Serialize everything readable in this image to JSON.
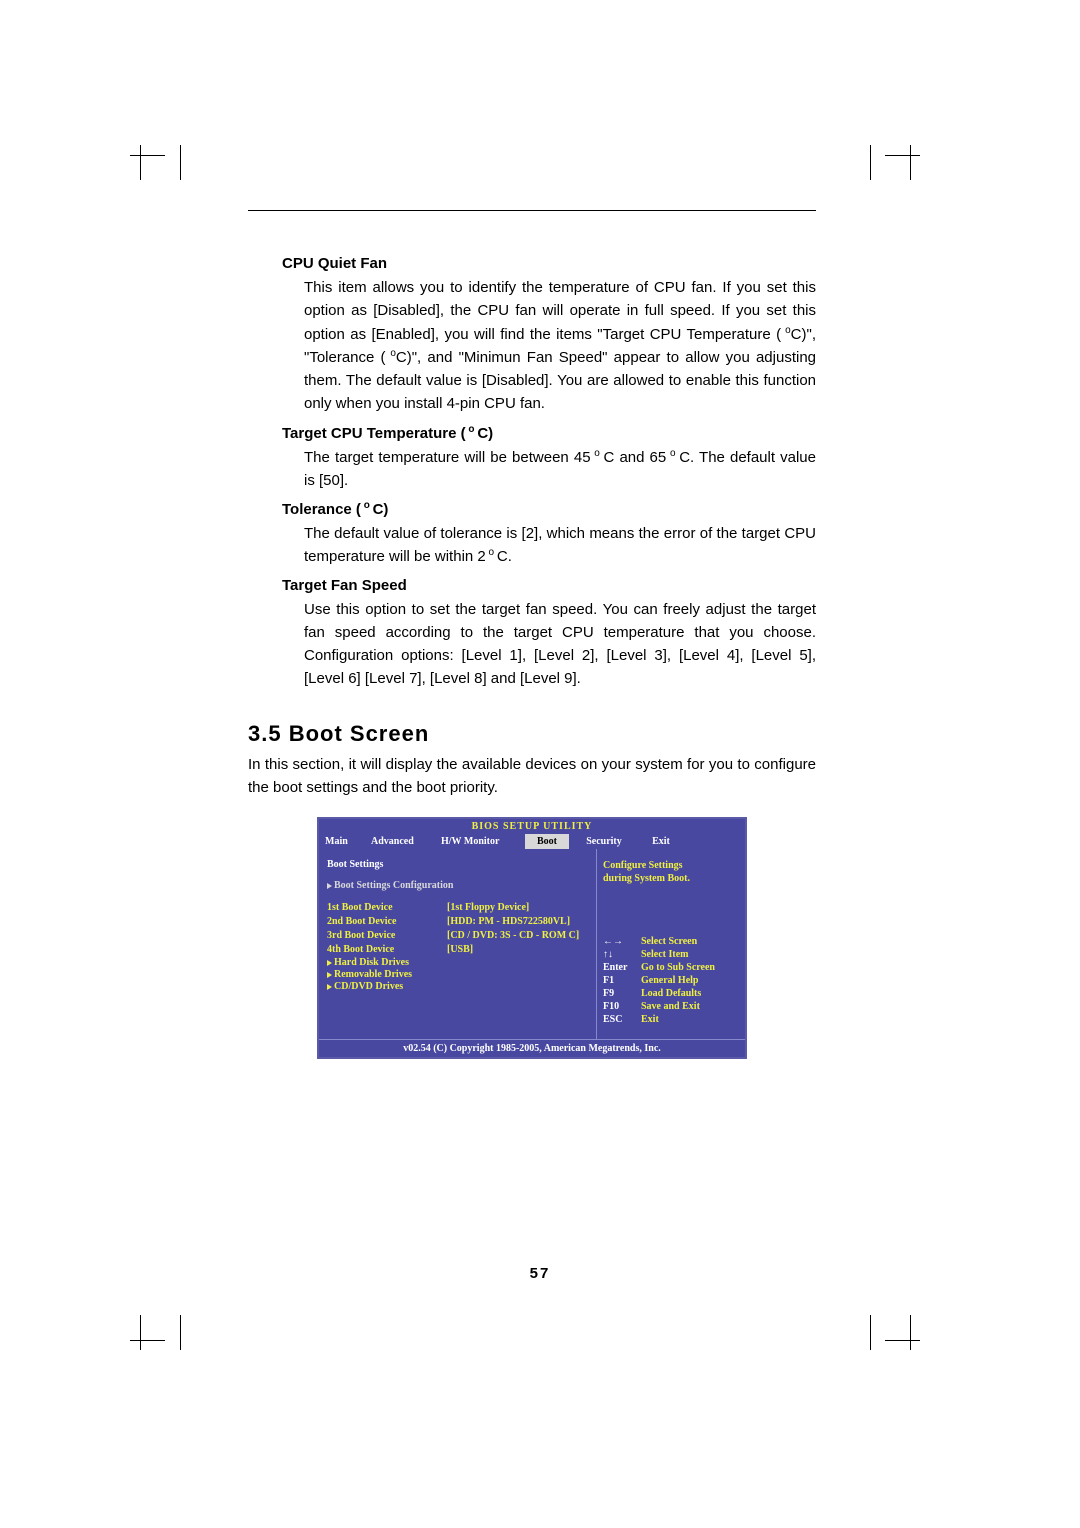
{
  "page_number": "57",
  "sections": {
    "cpu_quiet_fan": {
      "title": "CPU Quiet Fan",
      "body_a": "This item allows you to identify the temperature of CPU fan. If you set this option as [Disabled], the CPU fan will operate in full speed. If you set this option as [Enabled], you will find the items \"Target CPU Temperature",
      "body_b": "C)\", \"Tolerance (",
      "body_c": "C)\", and \"Minimun Fan Speed\" appear to allow you adjusting them. The default value is [Disabled]. You are allowed to enable this function only when you install 4-pin CPU fan."
    },
    "target_cpu_temp": {
      "title": "Target CPU Temperature (",
      "title_suffix": "C)",
      "body_a": "The target temperature will be between 45",
      "body_b": "C and 65",
      "body_c": "C. The default value is [50]."
    },
    "tolerance": {
      "title": "Tolerance (",
      "title_suffix": "C)",
      "body_a": "The default value of tolerance is [2], which means the error of the target CPU temperature will be within 2",
      "body_b": "C."
    },
    "target_fan_speed": {
      "title": "Target Fan Speed",
      "body": "Use this option to set the target fan speed. You can freely adjust the target fan speed according to the target CPU temperature that you choose. Configuration options: [Level 1], [Level 2], [Level 3], [Level 4], [Level 5], [Level 6] [Level 7], [Level 8] and [Level 9]."
    }
  },
  "boot_screen": {
    "heading": "3.5 Boot Screen",
    "intro": "In this section, it will display the available devices on your system for you to configure the boot settings and the boot priority."
  },
  "bios": {
    "title": "BIOS SETUP UTILITY",
    "tabs": {
      "main": "Main",
      "advanced": "Advanced",
      "hw": "H/W Monitor",
      "boot": "Boot",
      "security": "Security",
      "exit": "Exit"
    },
    "left": {
      "section": "Boot Settings",
      "config": "Boot Settings Configuration",
      "rows": [
        {
          "k": "1st Boot Device",
          "v": "[1st  Floppy Device]"
        },
        {
          "k": "2nd Boot Device",
          "v": "[HDD: PM - HDS722580VL]"
        },
        {
          "k": "3rd Boot Device",
          "v": "[CD / DVD: 3S - CD - ROM C]"
        },
        {
          "k": "4th Boot Device",
          "v": "[USB]"
        }
      ],
      "subs": [
        "Hard Disk Drives",
        "Removable Drives",
        "CD/DVD Drives"
      ]
    },
    "right": {
      "help1": "Configure Settings",
      "help2": "during System Boot.",
      "keys": [
        {
          "k": "←→",
          "d": "Select Screen"
        },
        {
          "k": "↑↓",
          "d": "Select Item"
        },
        {
          "k": "Enter",
          "d": "Go to Sub Screen"
        },
        {
          "k": "F1",
          "d": "General Help"
        },
        {
          "k": "F9",
          "d": "Load Defaults"
        },
        {
          "k": "F10",
          "d": "Save and Exit"
        },
        {
          "k": "ESC",
          "d": "Exit"
        }
      ]
    },
    "footer": "v02.54 (C) Copyright 1985-2005, American Megatrends, Inc."
  },
  "degree": "o"
}
